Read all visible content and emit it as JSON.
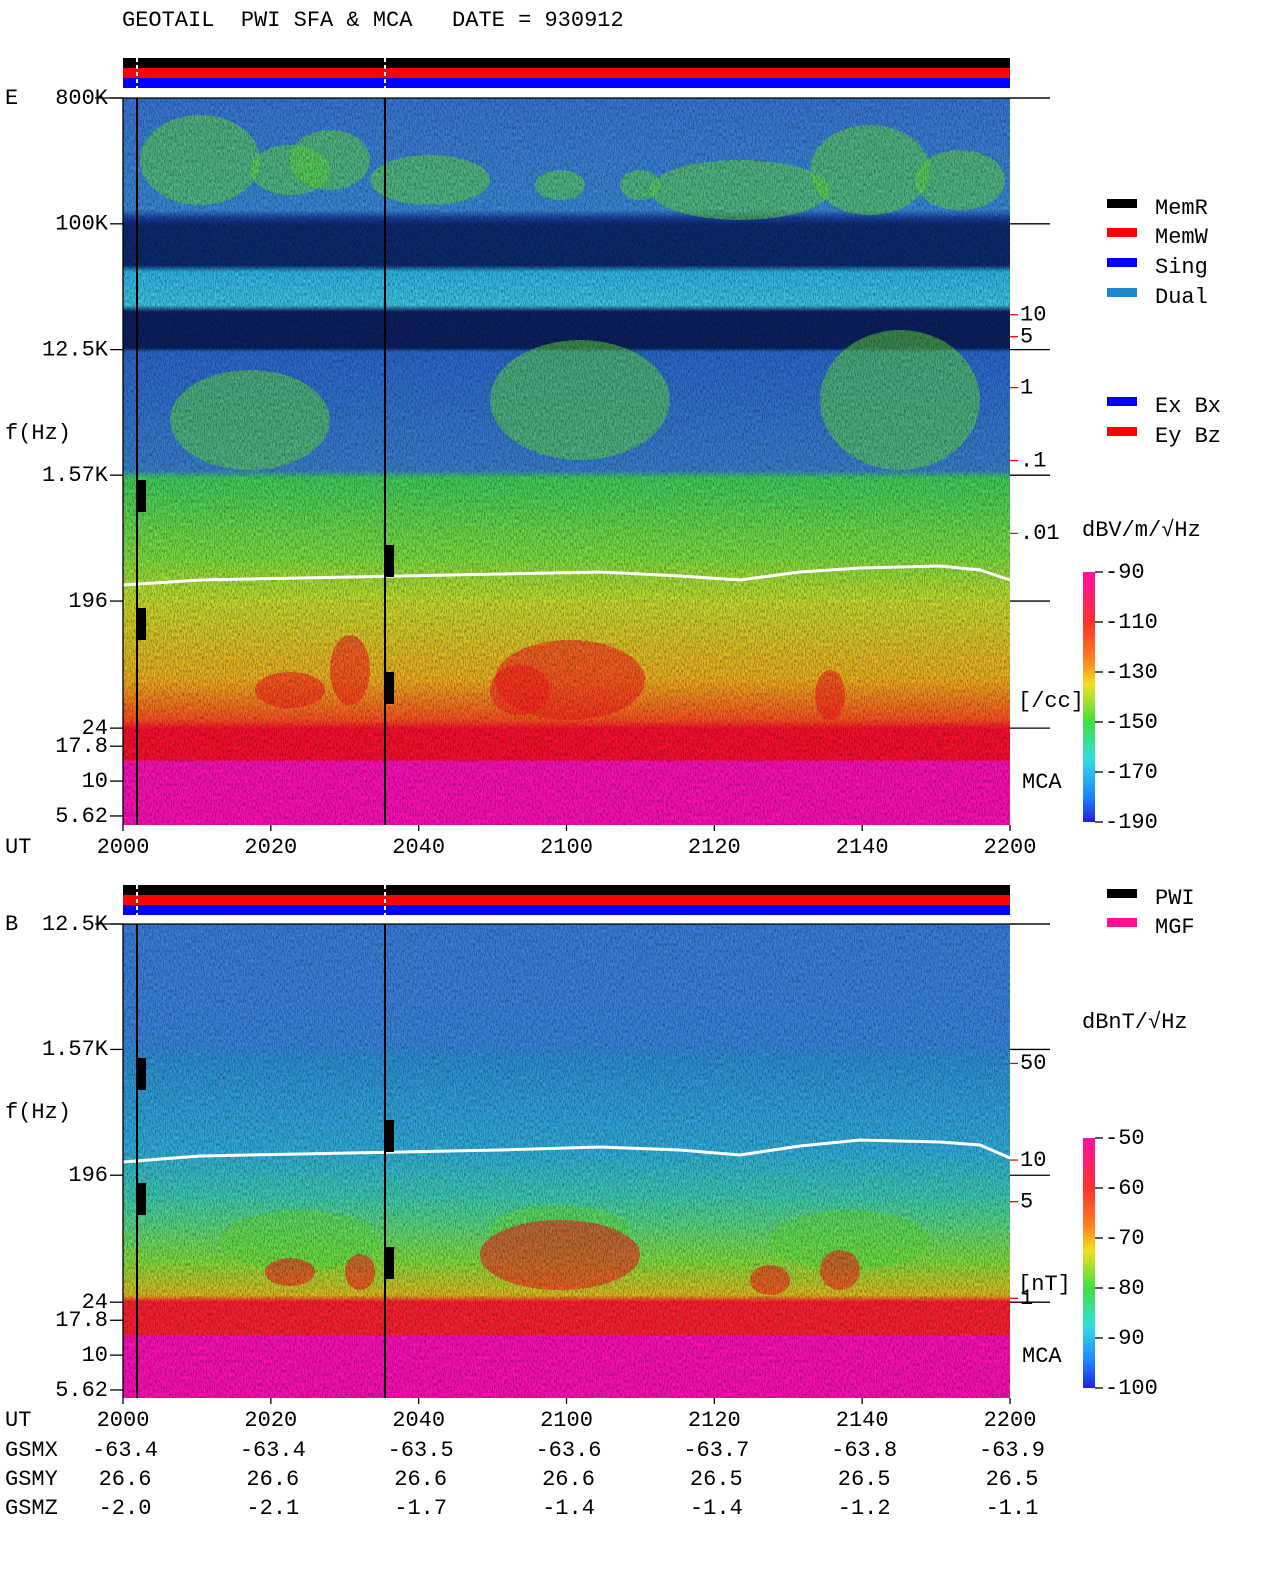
{
  "header": {
    "title": "GEOTAIL  PWI SFA & MCA   DATE = 930912"
  },
  "chart_data": [
    {
      "type": "spectrogram",
      "panel_label": "E",
      "y_label": "f(Hz)",
      "x_label": "UT",
      "categories": [
        "2000",
        "2020",
        "2040",
        "2100",
        "2120",
        "2140",
        "2200"
      ],
      "log_scale": true,
      "ylim": [
        4.84,
        800000
      ],
      "yticks": [
        {
          "value": 800000,
          "label": "800K"
        },
        {
          "value": 100000,
          "label": "100K"
        },
        {
          "value": 12500,
          "label": "12.5K"
        },
        {
          "value": 1570,
          "label": "1.57K"
        },
        196,
        24,
        17.8,
        10,
        5.62
      ],
      "y2_label": "[/cc]",
      "y2_color": "#ff0000",
      "y2lim": [
        1e-06,
        9400
      ],
      "y2ticks": [
        10,
        5,
        1,
        {
          "value": 0.1,
          "label": ".1"
        },
        {
          "value": 0.01,
          "label": ".01"
        }
      ],
      "mca_label": "MCA",
      "colorbar": {
        "label": "dBV/m/√Hz",
        "ylim": [
          -190,
          -90
        ],
        "yticks": [
          -90,
          -110,
          -130,
          -150,
          -170,
          -190
        ]
      },
      "legend": [
        {
          "name": "MemR",
          "color": "#000000"
        },
        {
          "name": "MemW",
          "color": "#ff0000"
        },
        {
          "name": "Sing",
          "color": "#0000ff"
        },
        {
          "name": "Dual",
          "color": "#1e88d0"
        }
      ],
      "legend2": [
        {
          "name": "Ex Bx",
          "color": "#0000ff"
        },
        {
          "name": "Ey Bz",
          "color": "#ff0000"
        }
      ]
    },
    {
      "type": "spectrogram",
      "panel_label": "B",
      "y_label": "f(Hz)",
      "x_label": "UT",
      "categories": [
        "2000",
        "2020",
        "2040",
        "2100",
        "2120",
        "2140",
        "2200"
      ],
      "log_scale": true,
      "ylim": [
        4.92,
        12500
      ],
      "yticks": [
        {
          "value": 12500,
          "label": "12.5K"
        },
        {
          "value": 1570,
          "label": "1.57K"
        },
        196,
        24,
        17.8,
        10,
        5.62
      ],
      "y2_label": "[nT]",
      "y2_color": "#ff0000",
      "y2lim": [
        0.19,
        510
      ],
      "y2ticks": [
        50,
        10,
        5,
        1
      ],
      "mca_label": "MCA",
      "colorbar": {
        "label": "dBnT/√Hz",
        "ylim": [
          -100,
          -50
        ],
        "yticks": [
          -50,
          -60,
          -70,
          -80,
          -90,
          -100
        ]
      },
      "legend": [
        {
          "name": "PWI",
          "color": "#000000"
        },
        {
          "name": "MGF",
          "color": "#ff1090"
        }
      ]
    }
  ],
  "orbit_table": {
    "rows": [
      {
        "label": "GSMX",
        "values": [
          "-63.4",
          "-63.4",
          "-63.5",
          "-63.6",
          "-63.7",
          "-63.8",
          "-63.9"
        ]
      },
      {
        "label": "GSMY",
        "values": [
          "26.6",
          "26.6",
          "26.6",
          "26.6",
          "26.5",
          "26.5",
          "26.5"
        ]
      },
      {
        "label": "GSMZ",
        "values": [
          "-2.0",
          "-2.1",
          "-1.7",
          "-1.4",
          "-1.4",
          "-1.2",
          "-1.1"
        ]
      }
    ]
  }
}
